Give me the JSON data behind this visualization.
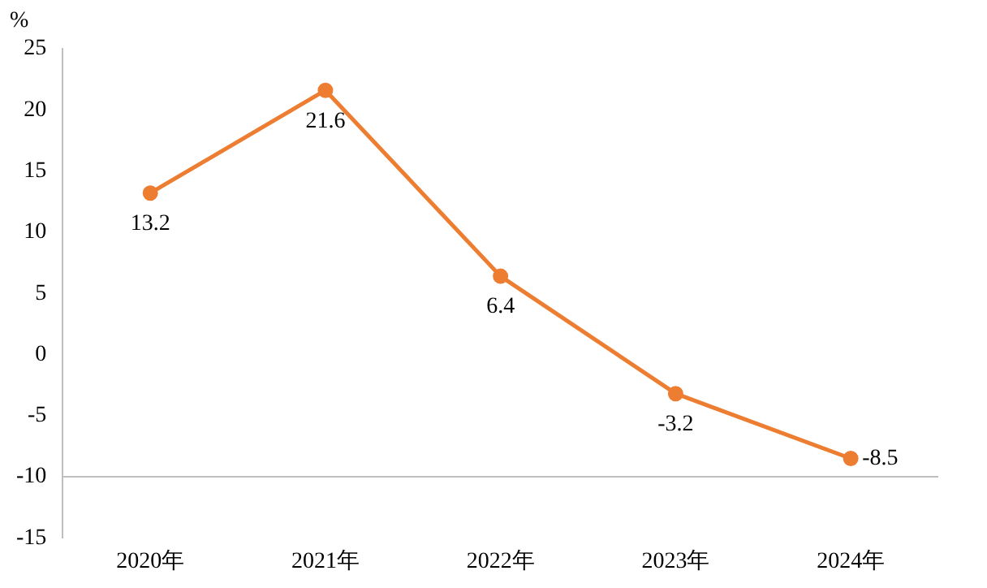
{
  "chart_data": {
    "type": "line",
    "ylabel": "%",
    "categories": [
      "2020年",
      "2021年",
      "2022年",
      "2023年",
      "2024年"
    ],
    "series": [
      {
        "color": "#ed7d31",
        "values": [
          13.2,
          21.6,
          6.4,
          -3.2,
          -8.5
        ]
      }
    ],
    "ylim": [
      -15,
      25
    ],
    "yticks": [
      -15,
      -10,
      -5,
      0,
      5,
      10,
      15,
      20,
      25
    ],
    "grid": false,
    "legend": false,
    "marker": "circle",
    "line_style": "solid",
    "data_labels": true,
    "ref_lines": [
      {
        "axis": "y",
        "value": -10,
        "color": "#bfbfbf"
      }
    ]
  }
}
